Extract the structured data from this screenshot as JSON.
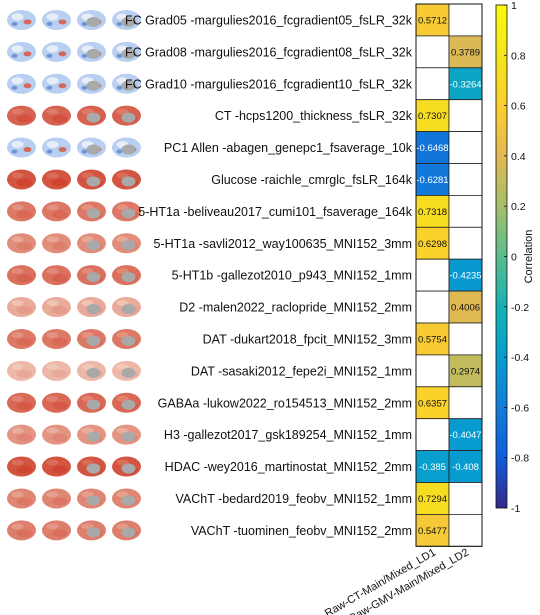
{
  "chart_data": {
    "type": "heatmap",
    "title": "",
    "rows": [
      "FC Grad05 -margulies2016_fcgradient05_fsLR_32k",
      "FC Grad08 -margulies2016_fcgradient08_fsLR_32k",
      "FC Grad10 -margulies2016_fcgradient10_fsLR_32k",
      "CT -hcps1200_thickness_fsLR_32k",
      "PC1 Allen -abagen_genepc1_fsaverage_10k",
      "Glucose -raichle_cmrglc_fsLR_164k",
      "5-HT1a -beliveau2017_cumi101_fsaverage_164k",
      "5-HT1a -savli2012_way100635_MNI152_3mm",
      "5-HT1b -gallezot2010_p943_MNI152_1mm",
      "D2 -malen2022_raclopride_MNI152_2mm",
      "DAT -dukart2018_fpcit_MNI152_3mm",
      "DAT -sasaki2012_fepe2i_MNI152_1mm",
      "GABAa -lukow2022_ro154513_MNI152_2mm",
      "H3 -gallezot2017_gsk189254_MNI152_1mm",
      "HDAC -wey2016_martinostat_MNI152_2mm",
      "VAChT -bedard2019_feobv_MNI152_1mm",
      "VAChT -tuominen_feobv_MNI152_2mm"
    ],
    "columns": [
      "Raw-CT-Main/Mixed_LD1",
      "Raw-GMV-Main/Mixed_LD2"
    ],
    "values": [
      [
        0.5712,
        null
      ],
      [
        null,
        0.3789
      ],
      [
        null,
        -0.3264
      ],
      [
        0.7307,
        null
      ],
      [
        -0.6468,
        null
      ],
      [
        -0.6281,
        null
      ],
      [
        0.7318,
        null
      ],
      [
        0.6298,
        null
      ],
      [
        null,
        -0.4235
      ],
      [
        null,
        0.4006
      ],
      [
        0.5754,
        null
      ],
      [
        null,
        0.2974
      ],
      [
        0.6357,
        null
      ],
      [
        null,
        -0.4047
      ],
      [
        -0.385,
        -0.408
      ],
      [
        0.7294,
        null
      ],
      [
        0.5477,
        null
      ]
    ],
    "colorbar": {
      "label": "Correlation",
      "range": [
        -1,
        1
      ],
      "ticks": [
        1,
        0.8,
        0.6,
        0.4,
        0.2,
        0,
        -0.2,
        -0.4,
        -0.6,
        -0.8,
        -1
      ],
      "tick_labels": [
        "1",
        "0.8",
        "0.6",
        "0.4",
        "0.2",
        "0",
        "-0.2",
        "-0.4",
        "-0.6",
        "-0.8",
        "-1"
      ],
      "colormap": "parula"
    },
    "brain_maps": [
      {
        "map": "gradient",
        "intensity": 0.5
      },
      {
        "map": "gradient",
        "intensity": 0.5
      },
      {
        "map": "gradient",
        "intensity": 0.5
      },
      {
        "map": "red",
        "intensity": 0.75
      },
      {
        "map": "gradient",
        "intensity": 0.4
      },
      {
        "map": "red",
        "intensity": 0.85
      },
      {
        "map": "red",
        "intensity": 0.6
      },
      {
        "map": "red",
        "intensity": 0.45
      },
      {
        "map": "red",
        "intensity": 0.65
      },
      {
        "map": "red",
        "intensity": 0.25
      },
      {
        "map": "red",
        "intensity": 0.6
      },
      {
        "map": "red",
        "intensity": 0.15
      },
      {
        "map": "red",
        "intensity": 0.7
      },
      {
        "map": "red",
        "intensity": 0.4
      },
      {
        "map": "red",
        "intensity": 0.85
      },
      {
        "map": "red",
        "intensity": 0.5
      },
      {
        "map": "red",
        "intensity": 0.55
      }
    ]
  }
}
